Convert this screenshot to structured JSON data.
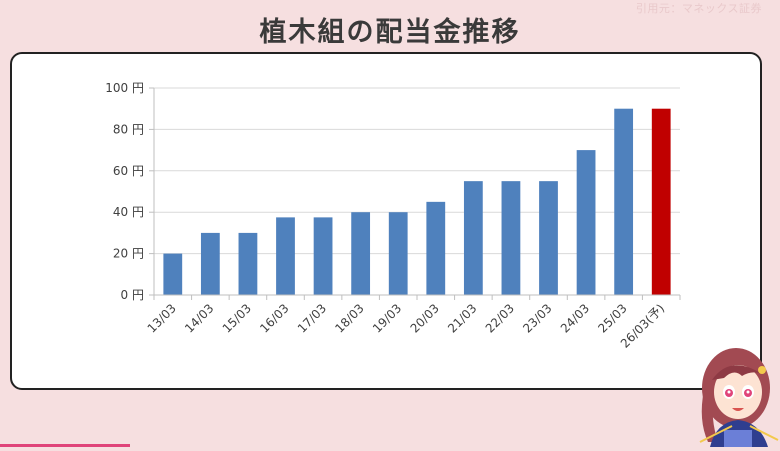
{
  "header": {
    "title": "植木組の配当金推移",
    "source": "引用元：マネックス証券"
  },
  "chart_data": {
    "type": "bar",
    "title": "",
    "xlabel": "",
    "ylabel": "",
    "categories": [
      "13/03",
      "14/03",
      "15/03",
      "16/03",
      "17/03",
      "18/03",
      "19/03",
      "20/03",
      "21/03",
      "22/03",
      "23/03",
      "24/03",
      "25/03",
      "26/03(予)"
    ],
    "values": [
      20,
      30,
      30,
      37.5,
      37.5,
      40,
      40,
      45,
      55,
      55,
      55,
      70,
      90,
      90
    ],
    "highlight_index": 13,
    "ylim": [
      0,
      100
    ],
    "yticks": [
      0,
      20,
      40,
      60,
      80,
      100
    ],
    "ytick_labels": [
      "0 円",
      "20 円",
      "40 円",
      "60 円",
      "80 円",
      "100 円"
    ],
    "grid": true,
    "colors": {
      "bar": "#4f81bd",
      "forecast": "#c00000",
      "grid": "#d9d9d9",
      "axis": "#bfbfbf"
    }
  }
}
